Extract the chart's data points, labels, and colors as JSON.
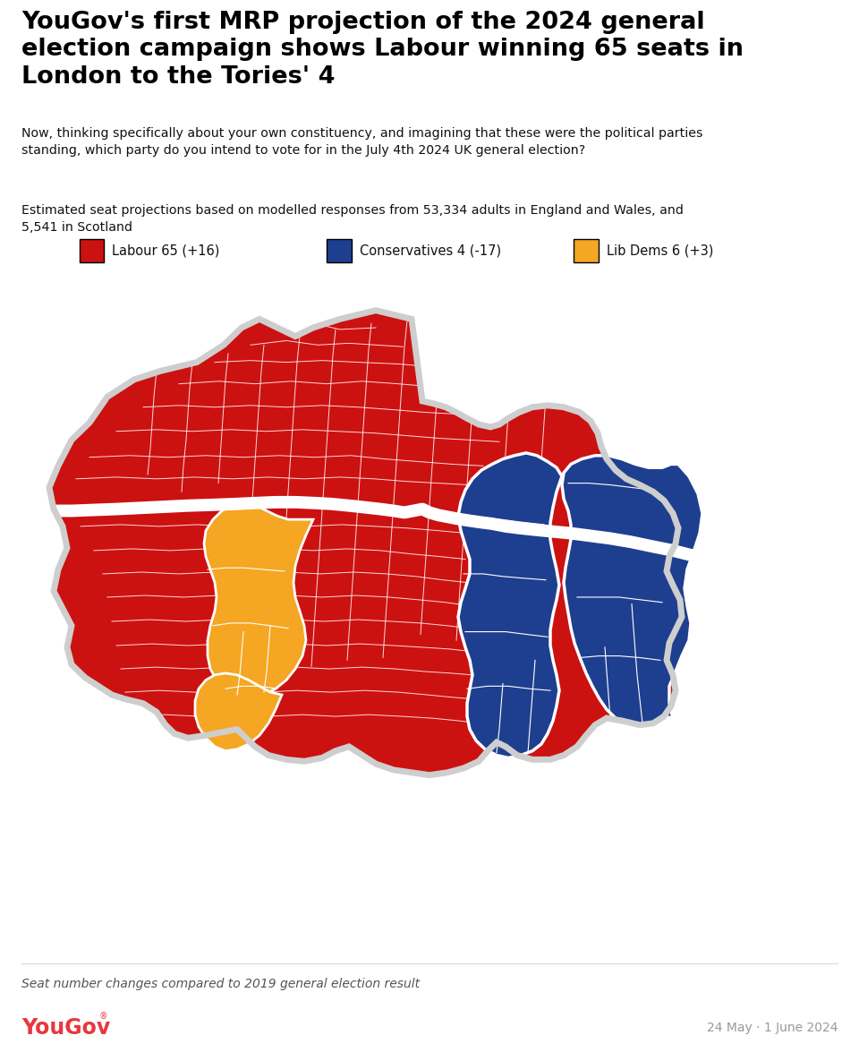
{
  "title": "YouGov's first MRP projection of the 2024 general\nelection campaign shows Labour winning 65 seats in\nLondon to the Tories' 4",
  "subtitle": "Now, thinking specifically about your own constituency, and imagining that these were the political parties\nstanding, which party do you intend to vote for in the July 4th 2024 UK general election?",
  "footnote": "Estimated seat projections based on modelled responses from 53,334 adults in England and Wales, and\n5,541 in Scotland",
  "legend_items": [
    {
      "label": "Labour 65 (+16)",
      "color": "#CC1111"
    },
    {
      "label": "Conservatives 4 (-17)",
      "color": "#1E3F8F"
    },
    {
      "label": "Lib Dems 6 (+3)",
      "color": "#F5A623"
    }
  ],
  "bottom_note": "Seat number changes compared to 2019 general election result",
  "date_note": "24 May · 1 June 2024",
  "yougov_color": "#E8373E",
  "bg_color": "#FFFFFF",
  "map_bg_color": "#CECECE",
  "labour_color": "#CC1111",
  "conservative_color": "#1E3F8F",
  "libdem_color": "#F5A623",
  "border_color": "#FFFFFF",
  "line_color": "#DDDDDD"
}
